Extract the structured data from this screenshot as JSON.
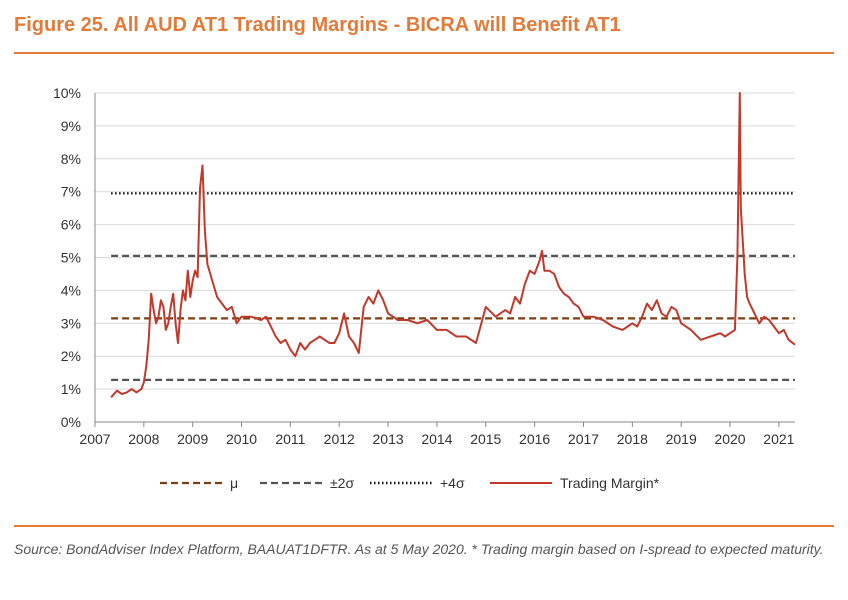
{
  "title": "Figure 25. All AUD AT1 Trading Margins - BICRA will Benefit AT1",
  "source": "Source: BondAdviser Index Platform, BAAUAT1DFTR. As at 5 May 2020. * Trading margin based on I-spread to expected maturity.",
  "colors": {
    "accent": "#E07B39",
    "margin_line": "#C0392B",
    "mu": "#7B3F12",
    "sigma2": "#555555",
    "sigma4": "#111111"
  },
  "chart_data": {
    "type": "line",
    "title": "Figure 25. All AUD AT1 Trading Margins - BICRA will Benefit AT1",
    "xlabel": "",
    "ylabel": "",
    "xlim": [
      2007,
      2021.33
    ],
    "ylim": [
      0,
      10
    ],
    "y_unit": "%",
    "x_ticks": [
      "2007",
      "2008",
      "2009",
      "2010",
      "2011",
      "2012",
      "2013",
      "2014",
      "2015",
      "2016",
      "2017",
      "2018",
      "2019",
      "2020",
      "2021"
    ],
    "y_ticks": [
      "0%",
      "1%",
      "2%",
      "3%",
      "4%",
      "5%",
      "6%",
      "7%",
      "8%",
      "9%",
      "10%"
    ],
    "grid": "horizontal",
    "legend": "bottom",
    "series": [
      {
        "name": "μ",
        "style": "dashed",
        "x": [
          2007.33,
          2021.33
        ],
        "y": [
          3.15,
          3.15
        ]
      },
      {
        "name": "±2σ",
        "style": "dashed",
        "x": [
          2007.33,
          2021.33
        ],
        "y": [
          5.05,
          5.05
        ]
      },
      {
        "name": "±2σ lower",
        "legend": false,
        "style": "dashed",
        "x": [
          2007.33,
          2021.33
        ],
        "y": [
          1.28,
          1.28
        ]
      },
      {
        "name": "+4σ",
        "style": "dotted",
        "x": [
          2007.33,
          2021.33
        ],
        "y": [
          6.95,
          6.95
        ]
      },
      {
        "name": "Trading Margin*",
        "style": "solid",
        "x": [
          2007.33,
          2007.45,
          2007.55,
          2007.65,
          2007.75,
          2007.85,
          2007.95,
          2008.0,
          2008.05,
          2008.1,
          2008.15,
          2008.2,
          2008.25,
          2008.3,
          2008.35,
          2008.4,
          2008.45,
          2008.5,
          2008.55,
          2008.6,
          2008.65,
          2008.7,
          2008.75,
          2008.8,
          2008.85,
          2008.9,
          2008.95,
          2009.0,
          2009.05,
          2009.1,
          2009.15,
          2009.2,
          2009.25,
          2009.3,
          2009.4,
          2009.5,
          2009.6,
          2009.7,
          2009.8,
          2009.9,
          2010.0,
          2010.2,
          2010.4,
          2010.5,
          2010.6,
          2010.7,
          2010.8,
          2010.9,
          2011.0,
          2011.1,
          2011.2,
          2011.3,
          2011.4,
          2011.5,
          2011.6,
          2011.7,
          2011.8,
          2011.9,
          2012.0,
          2012.1,
          2012.2,
          2012.3,
          2012.4,
          2012.5,
          2012.6,
          2012.7,
          2012.8,
          2012.9,
          2013.0,
          2013.2,
          2013.4,
          2013.6,
          2013.8,
          2014.0,
          2014.2,
          2014.4,
          2014.6,
          2014.8,
          2015.0,
          2015.2,
          2015.4,
          2015.5,
          2015.6,
          2015.7,
          2015.8,
          2015.9,
          2016.0,
          2016.1,
          2016.15,
          2016.2,
          2016.3,
          2016.4,
          2016.5,
          2016.6,
          2016.7,
          2016.8,
          2016.9,
          2017.0,
          2017.2,
          2017.4,
          2017.6,
          2017.8,
          2018.0,
          2018.1,
          2018.2,
          2018.3,
          2018.4,
          2018.5,
          2018.6,
          2018.7,
          2018.8,
          2018.9,
          2019.0,
          2019.2,
          2019.4,
          2019.6,
          2019.8,
          2019.9,
          2020.0,
          2020.1,
          2020.15,
          2020.2,
          2020.22,
          2020.25,
          2020.3,
          2020.35,
          2020.4,
          2020.5,
          2020.6,
          2020.7,
          2020.8,
          2020.9,
          2021.0,
          2021.1,
          2021.2,
          2021.33
        ],
        "y": [
          0.75,
          0.95,
          0.85,
          0.9,
          1.0,
          0.9,
          1.0,
          1.2,
          1.7,
          2.5,
          3.9,
          3.4,
          3.0,
          3.2,
          3.7,
          3.5,
          2.8,
          3.0,
          3.5,
          3.9,
          3.0,
          2.4,
          3.4,
          4.0,
          3.7,
          4.6,
          3.8,
          4.3,
          4.6,
          4.4,
          7.1,
          7.8,
          5.8,
          4.8,
          4.3,
          3.8,
          3.6,
          3.4,
          3.5,
          3.0,
          3.2,
          3.2,
          3.1,
          3.2,
          2.9,
          2.6,
          2.4,
          2.5,
          2.2,
          2.0,
          2.4,
          2.2,
          2.4,
          2.5,
          2.6,
          2.5,
          2.4,
          2.4,
          2.7,
          3.3,
          2.6,
          2.4,
          2.1,
          3.5,
          3.8,
          3.6,
          4.0,
          3.7,
          3.3,
          3.1,
          3.1,
          3.0,
          3.1,
          2.8,
          2.8,
          2.6,
          2.6,
          2.4,
          3.5,
          3.2,
          3.4,
          3.3,
          3.8,
          3.6,
          4.2,
          4.6,
          4.5,
          4.9,
          5.2,
          4.6,
          4.6,
          4.5,
          4.1,
          3.9,
          3.8,
          3.6,
          3.5,
          3.2,
          3.2,
          3.1,
          2.9,
          2.8,
          3.0,
          2.9,
          3.2,
          3.6,
          3.4,
          3.7,
          3.3,
          3.2,
          3.5,
          3.4,
          3.0,
          2.8,
          2.5,
          2.6,
          2.7,
          2.6,
          2.7,
          2.8,
          5.0,
          10.0,
          6.5,
          5.8,
          4.5,
          3.8,
          3.6,
          3.3,
          3.0,
          3.2,
          3.1,
          2.9,
          2.7,
          2.8,
          2.5,
          2.35
        ]
      }
    ]
  }
}
